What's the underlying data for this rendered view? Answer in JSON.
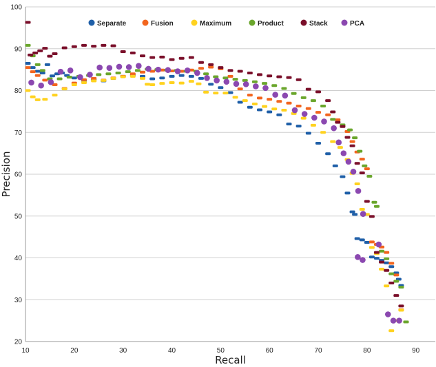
{
  "chart_data": {
    "type": "scatter",
    "title": "",
    "xlabel": "Recall",
    "ylabel": "Precision",
    "xlim": [
      10,
      94
    ],
    "ylim": [
      20,
      100
    ],
    "x_ticks": [
      10,
      20,
      30,
      40,
      50,
      60,
      70,
      80,
      90
    ],
    "y_ticks": [
      20,
      30,
      40,
      50,
      60,
      70,
      80,
      90,
      100
    ],
    "grid": "horizontal",
    "legend_position": "top",
    "series": [
      {
        "name": "Separate",
        "color": "#1f5fa8",
        "points": [
          [
            10.5,
            86.5
          ],
          [
            11.5,
            85.5
          ],
          [
            12.5,
            84.6
          ],
          [
            13.5,
            84.2
          ],
          [
            14.5,
            86.2
          ],
          [
            15.5,
            83.5
          ],
          [
            16.5,
            84.0
          ],
          [
            17.5,
            84.2
          ],
          [
            18.5,
            83.6
          ],
          [
            20,
            83.0
          ],
          [
            22,
            82.4
          ],
          [
            24,
            82.6
          ],
          [
            26,
            82.3
          ],
          [
            28,
            82.9
          ],
          [
            30,
            83.4
          ],
          [
            32,
            83.7
          ],
          [
            34,
            83.4
          ],
          [
            36,
            82.8
          ],
          [
            38,
            83.0
          ],
          [
            40,
            83.4
          ],
          [
            42,
            83.6
          ],
          [
            44,
            83.4
          ],
          [
            46,
            82.9
          ],
          [
            48,
            81.5
          ],
          [
            50,
            80.7
          ],
          [
            52,
            79.5
          ],
          [
            54,
            77.2
          ],
          [
            56,
            76.0
          ],
          [
            58,
            75.4
          ],
          [
            60,
            74.9
          ],
          [
            62,
            74.2
          ],
          [
            64,
            72.0
          ],
          [
            66,
            71.5
          ],
          [
            68,
            69.8
          ],
          [
            70,
            67.4
          ],
          [
            72,
            64.9
          ],
          [
            73.5,
            62.0
          ],
          [
            75,
            59.4
          ],
          [
            76,
            55.5
          ],
          [
            77,
            51.0
          ],
          [
            77.5,
            50.4
          ],
          [
            78,
            44.6
          ],
          [
            79,
            44.3
          ],
          [
            80,
            43.7
          ],
          [
            81,
            40.2
          ],
          [
            82,
            39.9
          ],
          [
            83,
            39.4
          ],
          [
            84,
            38.8
          ],
          [
            85,
            37.9
          ],
          [
            86,
            36.4
          ],
          [
            86.5,
            34.9
          ],
          [
            87,
            33.4
          ]
        ]
      },
      {
        "name": "Fusion",
        "color": "#f2651e",
        "points": [
          [
            10.5,
            85.5
          ],
          [
            11.5,
            84.5
          ],
          [
            12.5,
            83.6
          ],
          [
            14,
            82.5
          ],
          [
            16,
            81.4
          ],
          [
            18,
            80.5
          ],
          [
            20,
            81.8
          ],
          [
            22,
            82.6
          ],
          [
            24,
            82.9
          ],
          [
            26,
            82.5
          ],
          [
            28,
            83.0
          ],
          [
            30,
            83.4
          ],
          [
            32,
            84.0
          ],
          [
            34,
            84.4
          ],
          [
            36,
            84.6
          ],
          [
            38,
            84.9
          ],
          [
            40,
            84.7
          ],
          [
            42,
            84.6
          ],
          [
            44,
            84.9
          ],
          [
            46,
            85.3
          ],
          [
            48,
            85.6
          ],
          [
            50,
            85.2
          ],
          [
            52,
            83.4
          ],
          [
            54,
            80.4
          ],
          [
            56,
            78.9
          ],
          [
            58,
            78.2
          ],
          [
            60,
            77.9
          ],
          [
            62,
            77.4
          ],
          [
            64,
            77.0
          ],
          [
            66,
            76.3
          ],
          [
            68,
            75.7
          ],
          [
            70,
            74.8
          ],
          [
            72,
            74.2
          ],
          [
            74,
            73.0
          ],
          [
            75,
            71.5
          ],
          [
            76,
            70.2
          ],
          [
            77,
            67.8
          ],
          [
            78,
            65.3
          ],
          [
            79,
            63.6
          ],
          [
            80,
            61.3
          ],
          [
            81,
            43.8
          ],
          [
            82,
            43.2
          ],
          [
            83,
            42.6
          ],
          [
            84,
            41.3
          ],
          [
            85,
            38.7
          ],
          [
            86,
            35.9
          ],
          [
            87,
            27.6
          ],
          [
            88,
            24.7
          ]
        ]
      },
      {
        "name": "Maximum",
        "color": "#ffd21f",
        "points": [
          [
            10.5,
            80.0
          ],
          [
            11.5,
            78.5
          ],
          [
            12.5,
            77.8
          ],
          [
            14,
            77.9
          ],
          [
            16,
            78.9
          ],
          [
            18,
            80.4
          ],
          [
            20,
            81.4
          ],
          [
            22,
            81.9
          ],
          [
            24,
            82.3
          ],
          [
            26,
            82.4
          ],
          [
            28,
            82.9
          ],
          [
            30,
            83.3
          ],
          [
            32,
            83.4
          ],
          [
            34,
            82.9
          ],
          [
            35,
            81.5
          ],
          [
            36,
            81.4
          ],
          [
            38,
            81.7
          ],
          [
            40,
            81.9
          ],
          [
            42,
            81.8
          ],
          [
            44,
            82.2
          ],
          [
            45.5,
            81.6
          ],
          [
            47,
            79.6
          ],
          [
            49,
            79.4
          ],
          [
            51,
            79.4
          ],
          [
            53,
            78.4
          ],
          [
            55,
            77.6
          ],
          [
            57,
            76.8
          ],
          [
            59,
            76.2
          ],
          [
            61,
            75.6
          ],
          [
            63,
            75.3
          ],
          [
            65,
            74.5
          ],
          [
            67,
            73.4
          ],
          [
            69,
            71.7
          ],
          [
            71,
            70.0
          ],
          [
            73,
            67.8
          ],
          [
            74.5,
            66.4
          ],
          [
            76,
            63.5
          ],
          [
            77,
            60.2
          ],
          [
            78,
            57.7
          ],
          [
            79,
            51.6
          ],
          [
            80,
            50.4
          ],
          [
            81,
            42.5
          ],
          [
            82,
            41.0
          ],
          [
            83,
            37.3
          ],
          [
            84,
            33.3
          ],
          [
            85,
            22.6
          ],
          [
            86,
            25.0
          ],
          [
            87,
            27.5
          ]
        ]
      },
      {
        "name": "Product",
        "color": "#6aa62c",
        "points": [
          [
            10.5,
            90.8
          ],
          [
            11.5,
            88.3
          ],
          [
            12.5,
            86.2
          ],
          [
            13.5,
            84.8
          ],
          [
            15,
            82.8
          ],
          [
            17,
            82.8
          ],
          [
            19,
            83.2
          ],
          [
            21,
            83.4
          ],
          [
            23,
            83.6
          ],
          [
            25,
            83.8
          ],
          [
            27,
            84.0
          ],
          [
            29,
            84.2
          ],
          [
            31,
            84.5
          ],
          [
            33,
            84.8
          ],
          [
            35,
            85.1
          ],
          [
            37,
            85.0
          ],
          [
            39,
            84.9
          ],
          [
            41,
            84.8
          ],
          [
            43,
            84.6
          ],
          [
            45,
            84.6
          ],
          [
            47,
            84.0
          ],
          [
            49,
            83.3
          ],
          [
            51,
            83.0
          ],
          [
            53,
            82.7
          ],
          [
            55,
            82.4
          ],
          [
            57,
            82.1
          ],
          [
            59,
            81.7
          ],
          [
            61,
            81.2
          ],
          [
            63,
            80.5
          ],
          [
            65,
            79.3
          ],
          [
            67,
            78.3
          ],
          [
            69,
            77.6
          ],
          [
            71,
            76.3
          ],
          [
            73,
            73.1
          ],
          [
            75,
            71.8
          ],
          [
            76.5,
            70.6
          ],
          [
            77.5,
            68.7
          ],
          [
            78.5,
            65.5
          ],
          [
            79.5,
            62.0
          ],
          [
            80.5,
            59.5
          ],
          [
            81.5,
            53.3
          ],
          [
            82,
            52.3
          ],
          [
            83,
            41.6
          ],
          [
            84,
            39.8
          ],
          [
            85,
            36.2
          ],
          [
            86,
            34.4
          ],
          [
            87,
            33.0
          ],
          [
            88,
            24.7
          ]
        ]
      },
      {
        "name": "Stack",
        "color": "#7a0f2a",
        "points": [
          [
            10.5,
            96.3
          ],
          [
            11,
            88.5
          ],
          [
            12,
            89.0
          ],
          [
            13,
            89.5
          ],
          [
            14,
            90.1
          ],
          [
            15,
            88.2
          ],
          [
            16,
            88.8
          ],
          [
            18,
            90.2
          ],
          [
            20,
            90.5
          ],
          [
            22,
            90.8
          ],
          [
            24,
            90.6
          ],
          [
            26,
            90.8
          ],
          [
            28,
            90.7
          ],
          [
            30,
            89.3
          ],
          [
            32,
            89.0
          ],
          [
            34,
            88.3
          ],
          [
            36,
            87.9
          ],
          [
            38,
            88.0
          ],
          [
            40,
            87.4
          ],
          [
            42,
            87.7
          ],
          [
            44,
            87.9
          ],
          [
            46,
            86.7
          ],
          [
            48,
            86.2
          ],
          [
            50,
            85.5
          ],
          [
            52,
            84.8
          ],
          [
            54,
            84.6
          ],
          [
            56,
            84.2
          ],
          [
            58,
            83.8
          ],
          [
            60,
            83.5
          ],
          [
            62,
            83.3
          ],
          [
            64,
            83.1
          ],
          [
            66,
            82.6
          ],
          [
            68,
            80.3
          ],
          [
            70,
            79.7
          ],
          [
            72,
            77.6
          ],
          [
            73,
            74.9
          ],
          [
            74,
            72.4
          ],
          [
            75,
            71.4
          ],
          [
            76,
            68.8
          ],
          [
            77,
            66.8
          ],
          [
            78,
            62.6
          ],
          [
            79,
            60.3
          ],
          [
            80,
            53.5
          ],
          [
            81,
            49.9
          ],
          [
            82,
            41.3
          ],
          [
            83,
            39.0
          ],
          [
            84,
            37.0
          ],
          [
            85,
            34.0
          ],
          [
            86,
            31.0
          ],
          [
            87,
            28.5
          ]
        ]
      },
      {
        "name": "PCA",
        "color": "#8b48b0",
        "points": [
          [
            11.2,
            81.9
          ],
          [
            13.2,
            81.2
          ],
          [
            15.2,
            82.0
          ],
          [
            17.2,
            84.5
          ],
          [
            19.2,
            84.8
          ],
          [
            21.2,
            83.2
          ],
          [
            23.2,
            83.8
          ],
          [
            25.2,
            85.5
          ],
          [
            27.2,
            85.4
          ],
          [
            29.2,
            85.7
          ],
          [
            31.2,
            85.6
          ],
          [
            33.2,
            85.9
          ],
          [
            35.2,
            85.2
          ],
          [
            37.2,
            85.0
          ],
          [
            39.2,
            84.9
          ],
          [
            41.2,
            84.6
          ],
          [
            43.2,
            84.8
          ],
          [
            45.2,
            84.2
          ],
          [
            47.2,
            83.0
          ],
          [
            49.2,
            82.4
          ],
          [
            51.2,
            82.1
          ],
          [
            53.2,
            81.6
          ],
          [
            55.2,
            81.5
          ],
          [
            57.2,
            81.0
          ],
          [
            59.2,
            80.6
          ],
          [
            61.2,
            79.0
          ],
          [
            63.2,
            78.8
          ],
          [
            65.2,
            75.3
          ],
          [
            67.2,
            74.4
          ],
          [
            69.2,
            73.5
          ],
          [
            71.2,
            72.6
          ],
          [
            73.2,
            71.0
          ],
          [
            74.2,
            67.6
          ],
          [
            75.2,
            65.0
          ],
          [
            76.2,
            63.0
          ],
          [
            77.2,
            60.6
          ],
          [
            78.2,
            56.0
          ],
          [
            79.2,
            50.5
          ],
          [
            78.1,
            40.2
          ],
          [
            79.1,
            39.5
          ],
          [
            82.4,
            43.2
          ],
          [
            84.3,
            26.5
          ],
          [
            85.4,
            25.0
          ],
          [
            86.6,
            25.0
          ]
        ]
      }
    ]
  }
}
